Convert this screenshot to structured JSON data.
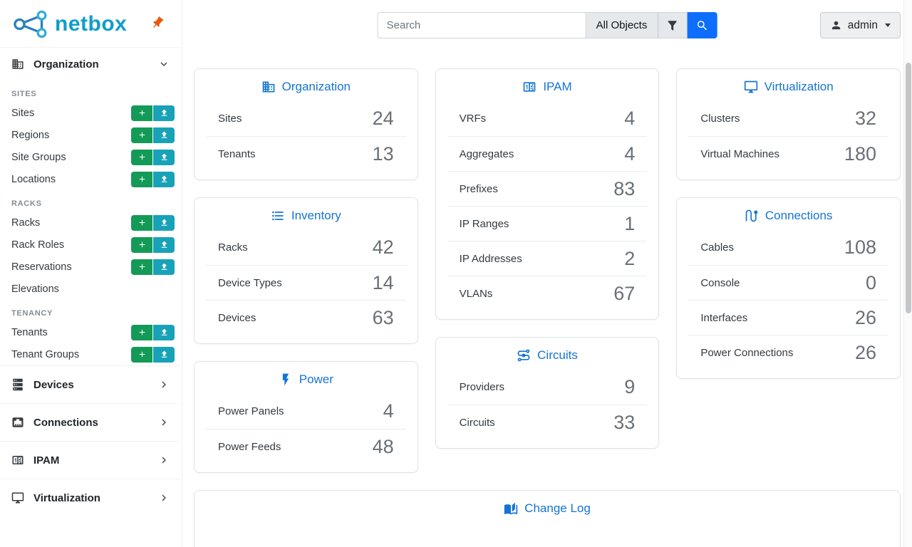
{
  "brand": {
    "wordmark": "netbox"
  },
  "topbar": {
    "search": {
      "placeholder": "Search",
      "value": ""
    },
    "object_type_button": "All Objects",
    "user_button": "admin"
  },
  "sidebar": {
    "sections": [
      {
        "label": "Organization",
        "icon": "domain",
        "expanded": true,
        "groups": [
          {
            "header": "SITES",
            "items": [
              {
                "label": "Sites",
                "add": true,
                "import": true
              },
              {
                "label": "Regions",
                "add": true,
                "import": true
              },
              {
                "label": "Site Groups",
                "add": true,
                "import": true
              },
              {
                "label": "Locations",
                "add": true,
                "import": true
              }
            ]
          },
          {
            "header": "RACKS",
            "items": [
              {
                "label": "Racks",
                "add": true,
                "import": true
              },
              {
                "label": "Rack Roles",
                "add": true,
                "import": true
              },
              {
                "label": "Reservations",
                "add": true,
                "import": true
              },
              {
                "label": "Elevations",
                "add": false,
                "import": false
              }
            ]
          },
          {
            "header": "TENANCY",
            "items": [
              {
                "label": "Tenants",
                "add": true,
                "import": true
              },
              {
                "label": "Tenant Groups",
                "add": true,
                "import": true
              }
            ]
          }
        ]
      },
      {
        "label": "Devices",
        "icon": "server",
        "expanded": false
      },
      {
        "label": "Connections",
        "icon": "ethernet",
        "expanded": false
      },
      {
        "label": "IPAM",
        "icon": "counter",
        "expanded": false
      },
      {
        "label": "Virtualization",
        "icon": "monitor",
        "expanded": false
      }
    ]
  },
  "dashboard": {
    "columns": [
      [
        "organization",
        "inventory",
        "power"
      ],
      [
        "ipam",
        "circuits"
      ],
      [
        "virtualization",
        "connections"
      ]
    ],
    "cards": {
      "organization": {
        "title": "Organization",
        "icon": "domain",
        "rows": [
          {
            "label": "Sites",
            "value": "24"
          },
          {
            "label": "Tenants",
            "value": "13"
          }
        ]
      },
      "inventory": {
        "title": "Inventory",
        "icon": "list",
        "rows": [
          {
            "label": "Racks",
            "value": "42"
          },
          {
            "label": "Device Types",
            "value": "14"
          },
          {
            "label": "Devices",
            "value": "63"
          }
        ]
      },
      "power": {
        "title": "Power",
        "icon": "flash",
        "rows": [
          {
            "label": "Power Panels",
            "value": "4"
          },
          {
            "label": "Power Feeds",
            "value": "48"
          }
        ]
      },
      "ipam": {
        "title": "IPAM",
        "icon": "counter",
        "rows": [
          {
            "label": "VRFs",
            "value": "4"
          },
          {
            "label": "Aggregates",
            "value": "4"
          },
          {
            "label": "Prefixes",
            "value": "83"
          },
          {
            "label": "IP Ranges",
            "value": "1"
          },
          {
            "label": "IP Addresses",
            "value": "2"
          },
          {
            "label": "VLANs",
            "value": "67"
          }
        ]
      },
      "circuits": {
        "title": "Circuits",
        "icon": "transit",
        "rows": [
          {
            "label": "Providers",
            "value": "9"
          },
          {
            "label": "Circuits",
            "value": "33"
          }
        ]
      },
      "virtualization": {
        "title": "Virtualization",
        "icon": "monitor",
        "rows": [
          {
            "label": "Clusters",
            "value": "32"
          },
          {
            "label": "Virtual Machines",
            "value": "180"
          }
        ]
      },
      "connections": {
        "title": "Connections",
        "icon": "cable",
        "rows": [
          {
            "label": "Cables",
            "value": "108"
          },
          {
            "label": "Console",
            "value": "0"
          },
          {
            "label": "Interfaces",
            "value": "26"
          },
          {
            "label": "Power Connections",
            "value": "26"
          }
        ]
      }
    },
    "changelog": {
      "title": "Change Log",
      "icon": "book"
    }
  },
  "colors": {
    "primary_blue": "#0d6efd",
    "link_blue": "#1574d4",
    "add_green": "#149a57",
    "import_teal": "#18a2b8",
    "brand_teal": "#0f9dcc",
    "pin_orange": "#e8590c"
  }
}
